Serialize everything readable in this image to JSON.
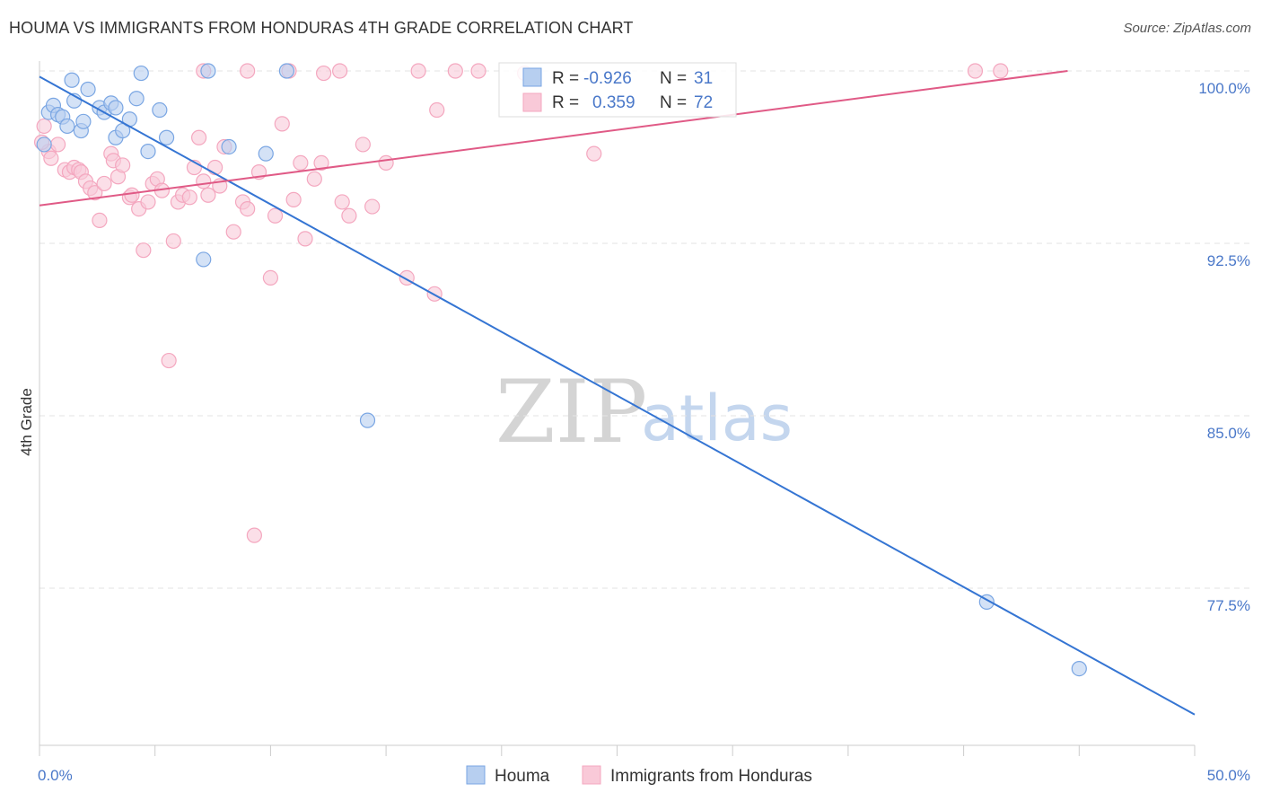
{
  "header": {
    "title": "HOUMA VS IMMIGRANTS FROM HONDURAS 4TH GRADE CORRELATION CHART",
    "source": "Source: ZipAtlas.com"
  },
  "watermark": {
    "zip": "ZIP",
    "atlas": "atlas"
  },
  "legend_top": {
    "r_label": "R =",
    "n_label": "N =",
    "rows": [
      {
        "r_value": "-0.926",
        "n_value": "31",
        "color": "#4a78c9"
      },
      {
        "r_value": "0.359",
        "n_value": "72",
        "color": "#4a78c9"
      }
    ]
  },
  "chart_data": {
    "type": "scatter",
    "title": "HOUMA VS IMMIGRANTS FROM HONDURAS 4TH GRADE CORRELATION CHART",
    "xlabel": "",
    "ylabel": "4th Grade",
    "xlim": [
      0,
      50
    ],
    "ylim": [
      71.5,
      100.6
    ],
    "x_tick_labels": [
      "0.0%",
      "50.0%"
    ],
    "y_ticks": [
      {
        "value": 100,
        "label": "100.0%"
      },
      {
        "value": 92.5,
        "label": "92.5%"
      },
      {
        "value": 85,
        "label": "85.0%"
      },
      {
        "value": 77.5,
        "label": "77.5%"
      }
    ],
    "grid": true,
    "legend": "bottom-center",
    "series": [
      {
        "name": "Houma",
        "color": "#7aa6e3",
        "line_color": "#3575d3",
        "trend": {
          "x": [
            0,
            50
          ],
          "y": [
            99.75,
            72.0
          ]
        },
        "points": [
          [
            0.2,
            96.8
          ],
          [
            0.4,
            98.2
          ],
          [
            0.6,
            98.5
          ],
          [
            0.8,
            98.1
          ],
          [
            1.0,
            98.0
          ],
          [
            1.2,
            97.6
          ],
          [
            1.4,
            99.6
          ],
          [
            1.5,
            98.7
          ],
          [
            1.8,
            97.4
          ],
          [
            1.9,
            97.8
          ],
          [
            2.1,
            99.2
          ],
          [
            2.6,
            98.4
          ],
          [
            2.8,
            98.2
          ],
          [
            3.1,
            98.6
          ],
          [
            3.3,
            98.4
          ],
          [
            3.3,
            97.1
          ],
          [
            3.6,
            97.4
          ],
          [
            3.9,
            97.9
          ],
          [
            4.2,
            98.8
          ],
          [
            4.4,
            99.9
          ],
          [
            4.7,
            96.5
          ],
          [
            5.2,
            98.3
          ],
          [
            5.5,
            97.1
          ],
          [
            7.1,
            91.8
          ],
          [
            7.3,
            100.0
          ],
          [
            8.2,
            96.7
          ],
          [
            9.8,
            96.4
          ],
          [
            10.7,
            100.0
          ],
          [
            14.2,
            84.8
          ],
          [
            41.0,
            76.9
          ],
          [
            45.0,
            74.0
          ]
        ]
      },
      {
        "name": "Immigrants from Honduras",
        "color": "#f4a7bf",
        "line_color": "#e05a86",
        "trend": {
          "x": [
            0,
            44.5
          ],
          "y": [
            94.15,
            100.0
          ]
        },
        "points": [
          [
            0.2,
            97.6
          ],
          [
            0.4,
            96.5
          ],
          [
            0.5,
            96.2
          ],
          [
            0.8,
            96.8
          ],
          [
            1.1,
            95.7
          ],
          [
            1.3,
            95.6
          ],
          [
            1.5,
            95.8
          ],
          [
            1.7,
            95.7
          ],
          [
            1.8,
            95.6
          ],
          [
            2.0,
            95.2
          ],
          [
            2.2,
            94.9
          ],
          [
            2.4,
            94.7
          ],
          [
            2.6,
            93.5
          ],
          [
            2.8,
            95.1
          ],
          [
            3.1,
            96.4
          ],
          [
            3.2,
            96.1
          ],
          [
            3.4,
            95.4
          ],
          [
            3.6,
            95.9
          ],
          [
            3.9,
            94.5
          ],
          [
            4.0,
            94.6
          ],
          [
            4.3,
            94.0
          ],
          [
            4.5,
            92.2
          ],
          [
            4.7,
            94.3
          ],
          [
            4.9,
            95.1
          ],
          [
            5.1,
            95.3
          ],
          [
            5.3,
            94.8
          ],
          [
            5.6,
            87.4
          ],
          [
            5.8,
            92.6
          ],
          [
            6.0,
            94.3
          ],
          [
            6.2,
            94.6
          ],
          [
            6.5,
            94.5
          ],
          [
            6.7,
            95.8
          ],
          [
            6.9,
            97.1
          ],
          [
            7.1,
            95.2
          ],
          [
            7.3,
            94.6
          ],
          [
            7.6,
            95.8
          ],
          [
            7.8,
            95.0
          ],
          [
            8.0,
            96.7
          ],
          [
            8.4,
            93.0
          ],
          [
            8.8,
            94.3
          ],
          [
            9.0,
            94.0
          ],
          [
            9.3,
            79.8
          ],
          [
            9.5,
            95.6
          ],
          [
            10.0,
            91.0
          ],
          [
            10.2,
            93.7
          ],
          [
            10.5,
            97.7
          ],
          [
            10.8,
            100.0
          ],
          [
            11.0,
            94.4
          ],
          [
            11.3,
            96.0
          ],
          [
            11.5,
            92.7
          ],
          [
            11.9,
            95.3
          ],
          [
            12.2,
            96.0
          ],
          [
            12.3,
            99.9
          ],
          [
            13.0,
            100.0
          ],
          [
            13.1,
            94.3
          ],
          [
            13.4,
            93.7
          ],
          [
            14.0,
            96.8
          ],
          [
            14.4,
            94.1
          ],
          [
            15.0,
            96.0
          ],
          [
            15.9,
            91.0
          ],
          [
            17.1,
            90.3
          ],
          [
            17.2,
            98.3
          ],
          [
            19.0,
            100.0
          ],
          [
            21.0,
            99.9
          ],
          [
            24.0,
            96.4
          ],
          [
            0.1,
            96.9
          ],
          [
            7.1,
            100.0
          ],
          [
            9.0,
            100.0
          ],
          [
            16.4,
            100.0
          ],
          [
            18.0,
            100.0
          ],
          [
            40.5,
            100.0
          ],
          [
            41.6,
            100.0
          ]
        ]
      }
    ]
  }
}
